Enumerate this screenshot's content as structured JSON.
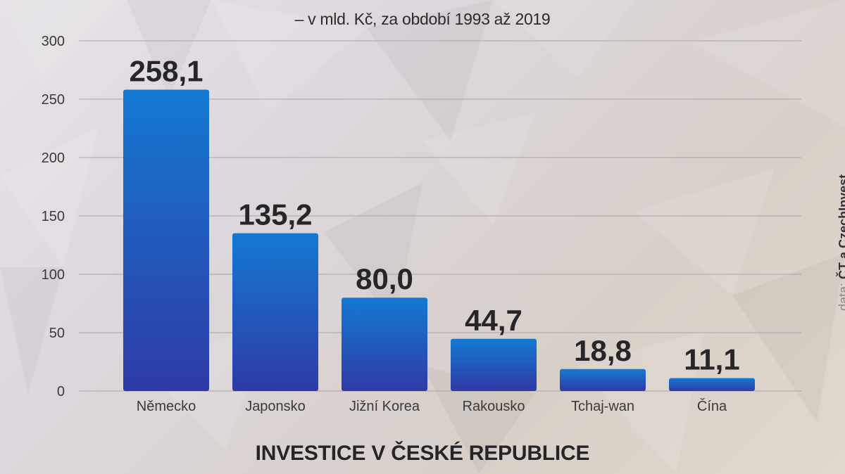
{
  "subtitle": "– v mld. Kč, za období 1993 až 2019",
  "title": "INVESTICE V ČESKÉ REPUBLICE",
  "source": {
    "label": "data:",
    "value": "ČT a CzechInvest"
  },
  "colors": {
    "bar_top": "#1479d2",
    "bar_bottom": "#2f3aa6",
    "value_label": "#262628",
    "grid": "#a9a4a6",
    "axis_text": "#3a3a3a"
  },
  "chart_data": {
    "type": "bar",
    "categories": [
      "Německo",
      "Japonsko",
      "Jižní Korea",
      "Rakousko",
      "Tchaj-wan",
      "Čína"
    ],
    "values": [
      258.1,
      135.2,
      80.0,
      44.7,
      18.8,
      11.1
    ],
    "value_labels": [
      "258,1",
      "135,2",
      "80,0",
      "44,7",
      "18,8",
      "11,1"
    ],
    "title": "INVESTICE V ČESKÉ REPUBLICE",
    "subtitle": "– v mld. Kč, za období 1993 až 2019",
    "xlabel": "",
    "ylabel": "",
    "ylim": [
      0,
      300
    ],
    "yticks": [
      0,
      50,
      100,
      150,
      200,
      250,
      300
    ],
    "grid": true,
    "legend": "none"
  }
}
